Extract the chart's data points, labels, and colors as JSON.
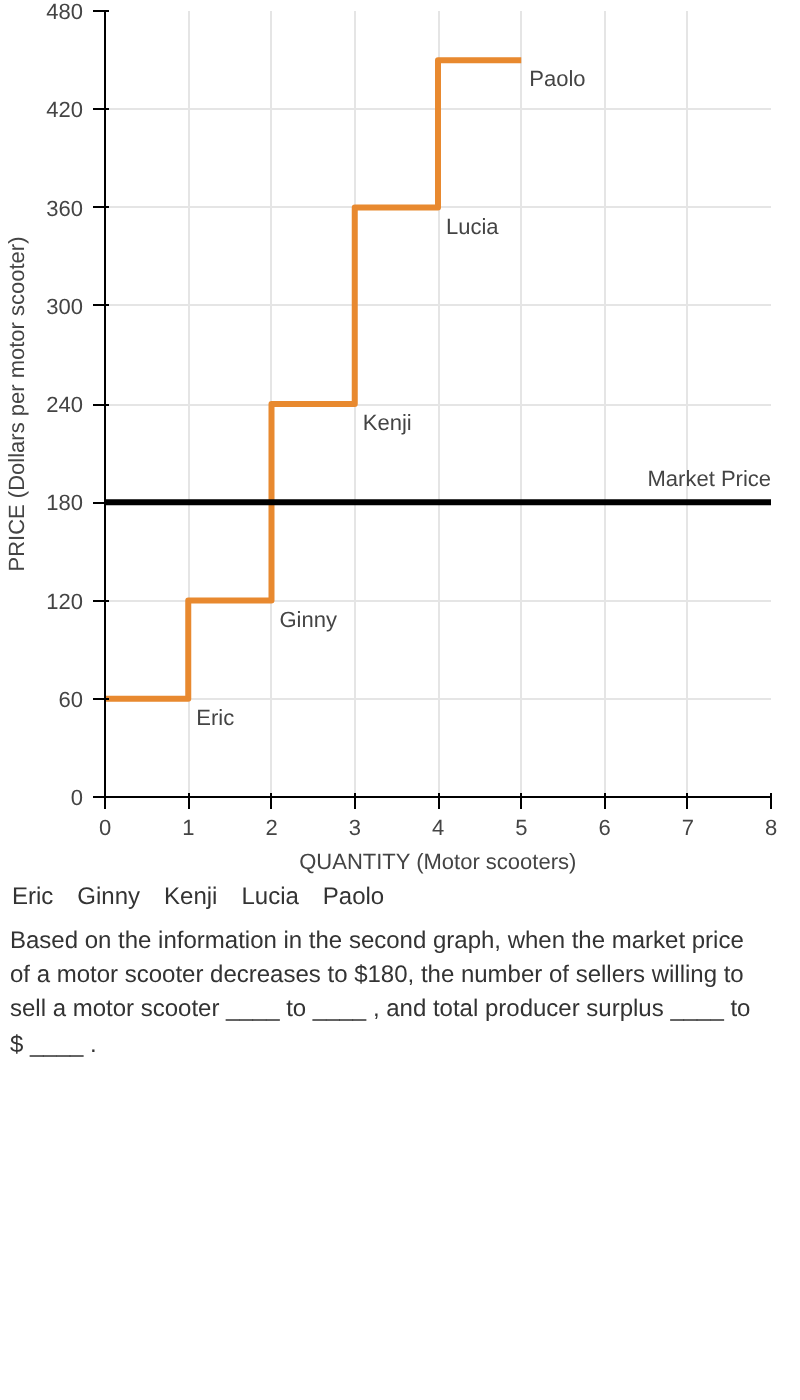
{
  "chart_data": {
    "type": "step",
    "xlabel": "QUANTITY (Motor scooters)",
    "ylabel": "PRICE (Dollars per motor scooter)",
    "x": [
      0,
      1,
      2,
      3,
      4,
      5
    ],
    "series": [
      {
        "color": "#e8892f",
        "values": [
          60,
          120,
          240,
          360,
          450,
          450
        ]
      }
    ],
    "xlim": [
      0,
      8
    ],
    "xticks": [
      0,
      1,
      2,
      3,
      4,
      5,
      6,
      7,
      8
    ],
    "ylim": [
      0,
      480
    ],
    "yticks": [
      0,
      60,
      120,
      180,
      240,
      300,
      360,
      420,
      480
    ],
    "grid": true,
    "ref_lines": [
      {
        "axis": "y",
        "value": 180,
        "label": "Market Price",
        "color": "#000000"
      }
    ],
    "annotations": [
      {
        "text": "Eric",
        "x": 1,
        "y": 60
      },
      {
        "text": "Ginny",
        "x": 2,
        "y": 120
      },
      {
        "text": "Kenji",
        "x": 3,
        "y": 240
      },
      {
        "text": "Lucia",
        "x": 4,
        "y": 360
      },
      {
        "text": "Paolo",
        "x": 5,
        "y": 450
      },
      "Eric",
      "Ginny",
      "Kenji",
      "Lucia",
      "Paolo",
      "Based on the information in the second graph, when the market price of a motor scooter decreases to $180, the number of sellers willing to sell a motor scooter ____ to ____ , and total producer surplus ____ to $ ____ ."
    ]
  }
}
